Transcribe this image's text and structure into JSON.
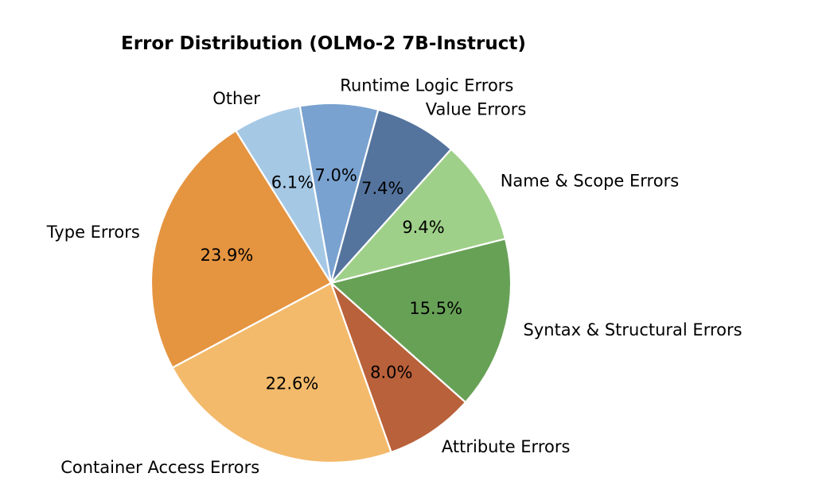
{
  "page": {
    "background_color": "#ffffff",
    "text_color": "#000000"
  },
  "chart_data": {
    "type": "pie",
    "title": "Error Distribution (OLMo-2 7B-Instruct)",
    "legend_position": "none",
    "grid": false,
    "slices": [
      {
        "label": "Runtime Logic Errors",
        "value": 7.0,
        "pct_label": "7.0%",
        "color": "#79a2d0"
      },
      {
        "label": "Value Errors",
        "value": 7.4,
        "pct_label": "7.4%",
        "color": "#54749e"
      },
      {
        "label": "Name & Scope Errors",
        "value": 9.4,
        "pct_label": "9.4%",
        "color": "#9fd089"
      },
      {
        "label": "Syntax & Structural Errors",
        "value": 15.5,
        "pct_label": "15.5%",
        "color": "#67a156"
      },
      {
        "label": "Attribute Errors",
        "value": 8.0,
        "pct_label": "8.0%",
        "color": "#b9613a"
      },
      {
        "label": "Container Access Errors",
        "value": 22.6,
        "pct_label": "22.6%",
        "color": "#f3ba6b"
      },
      {
        "label": "Type Errors",
        "value": 23.9,
        "pct_label": "23.9%",
        "color": "#e59440"
      },
      {
        "label": "Other",
        "value": 6.1,
        "pct_label": "6.1%",
        "color": "#a5c8e5"
      }
    ],
    "layout": {
      "start_angle_deg": 100,
      "direction": "clockwise",
      "pct_distance": 0.6,
      "label_distance": 1.1,
      "wedge_edge_color": "#ffffff",
      "label_color": "#000000"
    }
  }
}
